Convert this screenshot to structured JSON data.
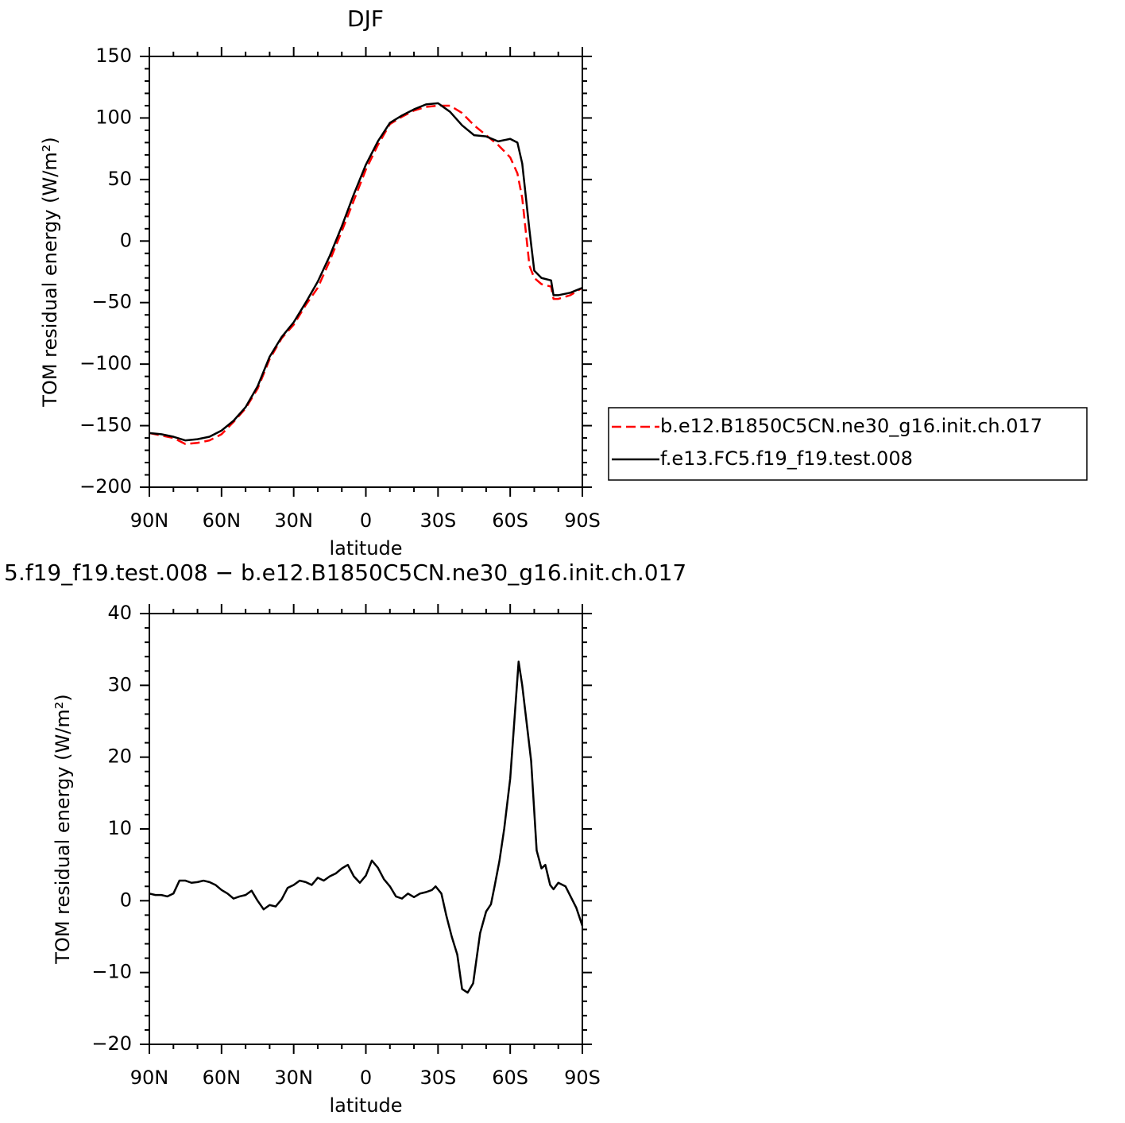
{
  "chart_data": [
    {
      "type": "line",
      "title": "DJF",
      "x_label": "latitude",
      "y_label": "TOM residual energy (W/m²)",
      "x": [
        90,
        85,
        80,
        75,
        70,
        65,
        60,
        55,
        50,
        45,
        40,
        35,
        30,
        25,
        20,
        15,
        10,
        5,
        0,
        -5,
        -10,
        -15,
        -20,
        -25,
        -30,
        -35,
        -40,
        -45,
        -50,
        -55,
        -60,
        -63,
        -65,
        -68,
        -70,
        -73,
        -77,
        -78,
        -80,
        -85,
        -90
      ],
      "series": [
        {
          "name": "b.e12.B1850C5CN.ne30_g16.init.ch.017",
          "color": "#ff0000",
          "line_style": "dashed",
          "values": [
            -156,
            -158,
            -160,
            -165,
            -164,
            -162,
            -157,
            -147,
            -136,
            -120,
            -96,
            -79,
            -68,
            -52,
            -38,
            -16,
            8,
            33,
            58,
            78,
            95,
            101,
            106,
            109,
            110,
            110,
            104,
            94,
            86,
            78,
            68,
            55,
            35,
            -20,
            -30,
            -35,
            -37,
            -47,
            -47,
            -44,
            -38
          ]
        },
        {
          "name": "f.e13.FC5.f19_f19.test.008",
          "color": "#000000",
          "line_style": "solid",
          "values": [
            -156,
            -157,
            -159,
            -162,
            -161,
            -159,
            -154,
            -146,
            -135,
            -118,
            -94,
            -78,
            -66,
            -50,
            -33,
            -12,
            12,
            38,
            62,
            81,
            96,
            102,
            107,
            111,
            112,
            105,
            94,
            86,
            85,
            81,
            83,
            80,
            63,
            9,
            -24,
            -30,
            -32,
            -44,
            -44,
            -42,
            -38
          ]
        }
      ],
      "xlim": [
        90,
        -90
      ],
      "xticks": [
        {
          "value": 90,
          "label": "90N"
        },
        {
          "value": 60,
          "label": "60N"
        },
        {
          "value": 30,
          "label": "30N"
        },
        0,
        {
          "value": -30,
          "label": "30S"
        },
        {
          "value": -60,
          "label": "60S"
        },
        {
          "value": -90,
          "label": "90S"
        }
      ],
      "ylim": [
        -200,
        150
      ],
      "yticks": [
        {
          "value": -200,
          "label": "−200"
        },
        {
          "value": -150,
          "label": "−150"
        },
        {
          "value": -100,
          "label": "−100"
        },
        {
          "value": -50,
          "label": "−50"
        },
        0,
        50,
        100,
        150
      ],
      "legend": "right"
    },
    {
      "type": "line",
      "title": "5.f19_f19.test.008 − b.e12.B1850C5CN.ne30_g16.init.ch.017",
      "x_label": "latitude",
      "y_label": "TOM residual energy (W/m²)",
      "x": [
        90,
        87.5,
        85,
        82.5,
        80,
        77.5,
        75,
        72.5,
        70,
        67.5,
        65,
        62.5,
        60,
        57.5,
        55,
        52.5,
        50,
        47.5,
        45,
        42.5,
        40,
        37.5,
        35,
        32.5,
        30,
        27.5,
        25,
        22.5,
        20,
        17.5,
        15,
        12.5,
        10,
        7.5,
        5,
        2.5,
        0,
        -2.5,
        -5,
        -7.5,
        -10,
        -12.5,
        -15,
        -17.5,
        -20,
        -22.5,
        -25,
        -27.5,
        -29,
        -31.4,
        -33.4,
        -35.7,
        -38,
        -40,
        -42.3,
        -44.6,
        -47.5,
        -50,
        -52,
        -53.5,
        -55.5,
        -57.5,
        -60,
        -63.5,
        -65,
        -68.7,
        -71,
        -73,
        -74.6,
        -76.6,
        -78,
        -80,
        -83,
        -87.5,
        -90
      ],
      "values": [
        1,
        0.8,
        0.8,
        0.6,
        1,
        2.8,
        2.8,
        2.5,
        2.6,
        2.8,
        2.6,
        2.2,
        1.5,
        1,
        0.3,
        0.6,
        0.8,
        1.4,
        0,
        -1.2,
        -0.6,
        -0.8,
        0.2,
        1.8,
        2.2,
        2.8,
        2.6,
        2.2,
        3.2,
        2.8,
        3.4,
        3.8,
        4.5,
        5,
        3.4,
        2.5,
        3.5,
        5.6,
        4.6,
        3,
        2,
        0.6,
        0.3,
        1,
        0.5,
        1,
        1.2,
        1.5,
        2,
        1,
        -2,
        -5,
        -7.5,
        -12.3,
        -12.8,
        -11.5,
        -4.5,
        -1.5,
        -0.5,
        2,
        5.5,
        10,
        17,
        33.3,
        30,
        19.5,
        7,
        4.5,
        5,
        2.2,
        1.6,
        2.5,
        2,
        -1,
        -3.5
      ],
      "color": "#000000",
      "xlim": [
        90,
        -90
      ],
      "xticks": [
        {
          "value": 90,
          "label": "90N"
        },
        {
          "value": 60,
          "label": "60N"
        },
        {
          "value": 30,
          "label": "30N"
        },
        0,
        {
          "value": -30,
          "label": "30S"
        },
        {
          "value": -60,
          "label": "60S"
        },
        {
          "value": -90,
          "label": "90S"
        }
      ],
      "ylim": [
        -20,
        40
      ],
      "yticks": [
        {
          "value": -20,
          "label": "−20"
        },
        {
          "value": -10,
          "label": "−10"
        },
        0,
        10,
        20,
        30,
        40
      ]
    }
  ]
}
